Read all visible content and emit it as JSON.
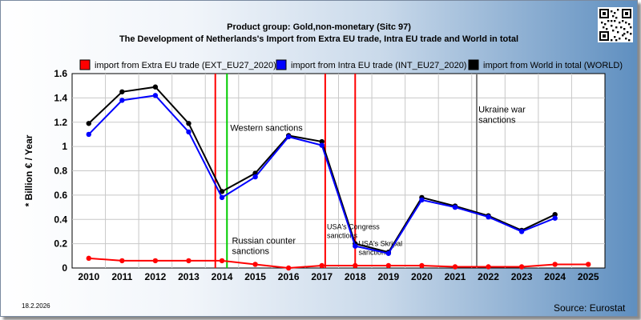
{
  "header": {
    "title_line1": "Product group: Gold,non-monetary (Sitc 97)",
    "title_line2": "The Development of Netherlands's Import from Extra EU trade, Intra EU trade and World in total"
  },
  "footer": {
    "date": "18.2.2026",
    "source": "Source: Eurostat"
  },
  "colors": {
    "extra_eu": "#ff0000",
    "intra_eu": "#0000ff",
    "world": "#000000",
    "event_red": "#ff0000",
    "event_green": "#00cc00",
    "event_gray": "#808080"
  },
  "chart_data": {
    "type": "line",
    "ylabel": "* Billion € / Year",
    "xlabel": "",
    "ylim": [
      0,
      1.6
    ],
    "yticks": [
      "0",
      "0.2",
      "0.4",
      "0.6",
      "0.8",
      "1",
      "1.2",
      "1.4",
      "1.6"
    ],
    "x": [
      "2010",
      "2011",
      "2012",
      "2013",
      "2014",
      "2015",
      "2016",
      "2017",
      "2018",
      "2019",
      "2020",
      "2021",
      "2022",
      "2023",
      "2024",
      "2025"
    ],
    "grid": true,
    "legend_position": "top",
    "series": [
      {
        "name": "import from Extra EU trade (EXT_EU27_2020)",
        "color": "#ff0000",
        "values": [
          0.08,
          0.06,
          0.06,
          0.06,
          0.06,
          0.03,
          0.0,
          0.02,
          0.02,
          0.02,
          0.02,
          0.01,
          0.01,
          0.01,
          0.03,
          0.03
        ]
      },
      {
        "name": "import from Intra EU trade (INT_EU27_2020)",
        "color": "#0000ff",
        "values": [
          1.1,
          1.38,
          1.42,
          1.12,
          0.58,
          0.75,
          1.08,
          1.01,
          0.18,
          0.12,
          0.56,
          0.5,
          0.42,
          0.3,
          0.41,
          null
        ]
      },
      {
        "name": "import from World in total (WORLD)",
        "color": "#000000",
        "values": [
          1.19,
          1.45,
          1.49,
          1.19,
          0.63,
          0.78,
          1.09,
          1.04,
          0.2,
          0.13,
          0.58,
          0.51,
          0.43,
          0.31,
          0.44,
          null
        ]
      }
    ],
    "events": [
      {
        "x": 2013.8,
        "color": "#ff0000",
        "label": ""
      },
      {
        "x": 2014.15,
        "color": "#00cc00",
        "label": ""
      },
      {
        "x": 2017.1,
        "color": "#ff0000",
        "label": ""
      },
      {
        "x": 2018.0,
        "color": "#ff0000",
        "label": ""
      },
      {
        "x": 2021.65,
        "color": "#808080",
        "label": ""
      }
    ],
    "annotations": [
      {
        "x": 2014.25,
        "y": 1.13,
        "text": "Western sanctions"
      },
      {
        "x": 2014.3,
        "y": 0.2,
        "text": "Russian counter",
        "text2": "sanctions"
      },
      {
        "x": 2017.15,
        "y": 0.32,
        "text": "USA's Congress",
        "text2": "sanctions",
        "small": true
      },
      {
        "x": 2018.1,
        "y": 0.18,
        "text": "USA's Skripal",
        "text2": "sanctions",
        "small": true
      },
      {
        "x": 2021.7,
        "y": 1.28,
        "text": "Ukraine war",
        "text2": "sanctions"
      }
    ]
  }
}
